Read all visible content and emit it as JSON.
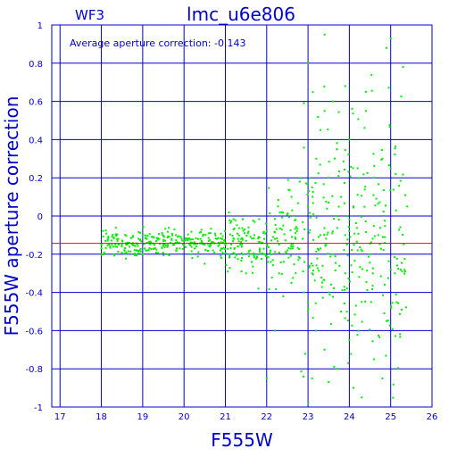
{
  "chart_data": {
    "type": "scatter",
    "panel_label": "WF3",
    "title": "lmc_u6e806",
    "annotation": "Average aperture correction: -0.143",
    "xlabel": "F555W",
    "ylabel": "F555W aperture correction",
    "xlim": [
      16.8,
      26.0
    ],
    "ylim": [
      -1.0,
      1.0
    ],
    "x_ticks": [
      "17",
      "18",
      "19",
      "20",
      "21",
      "22",
      "23",
      "24",
      "25",
      "26"
    ],
    "y_ticks": [
      "-1",
      "-0.8",
      "-0.6",
      "-0.4",
      "-0.2",
      "0",
      "0.2",
      "0.4",
      "0.6",
      "0.8",
      "1"
    ],
    "grid": true,
    "average_line": -0.143,
    "colors": {
      "axes": "#0000cc",
      "grid": "#0000cc",
      "points": "#00ee00",
      "average_line": "#ff0000"
    },
    "points": [
      [
        18.1,
        -0.13
      ],
      [
        18.3,
        -0.2
      ],
      [
        18.6,
        -0.15
      ],
      [
        18.9,
        -0.12
      ],
      [
        19.0,
        -0.1
      ],
      [
        19.2,
        -0.14
      ],
      [
        19.3,
        -0.17
      ],
      [
        19.4,
        -0.12
      ],
      [
        19.5,
        -0.13
      ],
      [
        19.6,
        -0.16
      ],
      [
        19.7,
        -0.12
      ],
      [
        19.8,
        -0.14
      ],
      [
        19.9,
        -0.17
      ],
      [
        20.0,
        -0.13
      ],
      [
        20.1,
        -0.12
      ],
      [
        20.2,
        -0.14
      ],
      [
        20.3,
        -0.16
      ],
      [
        20.4,
        -0.12
      ],
      [
        20.5,
        -0.15
      ],
      [
        20.6,
        -0.13
      ],
      [
        20.7,
        -0.18
      ],
      [
        20.8,
        -0.12
      ],
      [
        20.9,
        -0.17
      ],
      [
        21.0,
        -0.14
      ],
      [
        21.1,
        -0.2
      ],
      [
        21.2,
        -0.12
      ],
      [
        21.3,
        -0.16
      ],
      [
        21.4,
        -0.22
      ],
      [
        21.5,
        -0.13
      ],
      [
        21.6,
        -0.18
      ],
      [
        21.7,
        -0.1
      ],
      [
        21.8,
        -0.2
      ],
      [
        21.9,
        -0.14
      ],
      [
        22.0,
        -0.08
      ],
      [
        22.1,
        -0.24
      ],
      [
        22.2,
        -0.12
      ],
      [
        22.3,
        -0.3
      ],
      [
        22.4,
        -0.05
      ],
      [
        22.5,
        -0.18
      ],
      [
        22.6,
        -0.35
      ],
      [
        22.7,
        -0.02
      ],
      [
        22.8,
        -0.22
      ],
      [
        22.9,
        -0.4
      ],
      [
        23.0,
        0.05
      ],
      [
        23.0,
        -0.5
      ],
      [
        23.1,
        0.15
      ],
      [
        23.1,
        -0.3
      ],
      [
        23.2,
        0.3
      ],
      [
        23.2,
        -0.6
      ],
      [
        23.3,
        0.45
      ],
      [
        23.3,
        -0.1
      ],
      [
        23.4,
        0.55
      ],
      [
        23.4,
        -0.7
      ],
      [
        23.5,
        0.2
      ],
      [
        23.5,
        -0.4
      ],
      [
        23.6,
        0.6
      ],
      [
        23.6,
        -0.2
      ],
      [
        23.7,
        0.35
      ],
      [
        23.7,
        -0.8
      ],
      [
        23.8,
        0.1
      ],
      [
        23.8,
        -0.5
      ],
      [
        23.9,
        0.68
      ],
      [
        23.9,
        -0.3
      ],
      [
        24.0,
        0.4
      ],
      [
        24.0,
        -0.65
      ],
      [
        24.1,
        0.05
      ],
      [
        24.1,
        -0.9
      ],
      [
        24.2,
        0.25
      ],
      [
        24.3,
        -0.45
      ],
      [
        24.4,
        0.55
      ],
      [
        24.5,
        -0.2
      ],
      [
        24.6,
        0.2
      ],
      [
        24.6,
        -0.75
      ],
      [
        24.7,
        -0.1
      ],
      [
        24.8,
        0.3
      ],
      [
        24.9,
        -0.55
      ],
      [
        25.0,
        0.25
      ],
      [
        25.1,
        -0.3
      ],
      [
        25.3,
        0.78
      ],
      [
        25.4,
        0.05
      ],
      [
        24.9,
        0.88
      ],
      [
        25.0,
        0.93
      ],
      [
        22.0,
        -0.85
      ],
      [
        22.2,
        -0.6
      ],
      [
        23.4,
        0.95
      ],
      [
        24.3,
        -0.95
      ],
      [
        23.0,
        0.8
      ],
      [
        22.8,
        0.18
      ],
      [
        22.6,
        0.1
      ],
      [
        21.5,
        -0.3
      ],
      [
        21.8,
        -0.38
      ],
      [
        20.5,
        -0.25
      ],
      [
        20.2,
        -0.22
      ],
      [
        19.6,
        -0.2
      ],
      [
        20.9,
        -0.22
      ],
      [
        22.4,
        -0.42
      ],
      [
        23.1,
        -0.85
      ],
      [
        24.4,
        0.65
      ],
      [
        24.8,
        -0.85
      ],
      [
        23.7,
        0.0
      ],
      [
        19.1,
        -0.18
      ],
      [
        19.8,
        -0.1
      ],
      [
        20.6,
        -0.09
      ],
      [
        21.2,
        -0.07
      ],
      [
        21.9,
        -0.2
      ],
      [
        22.3,
        -0.15
      ],
      [
        22.7,
        -0.12
      ],
      [
        23.3,
        -0.17
      ],
      [
        23.9,
        -0.1
      ],
      [
        24.2,
        -0.18
      ]
    ]
  }
}
